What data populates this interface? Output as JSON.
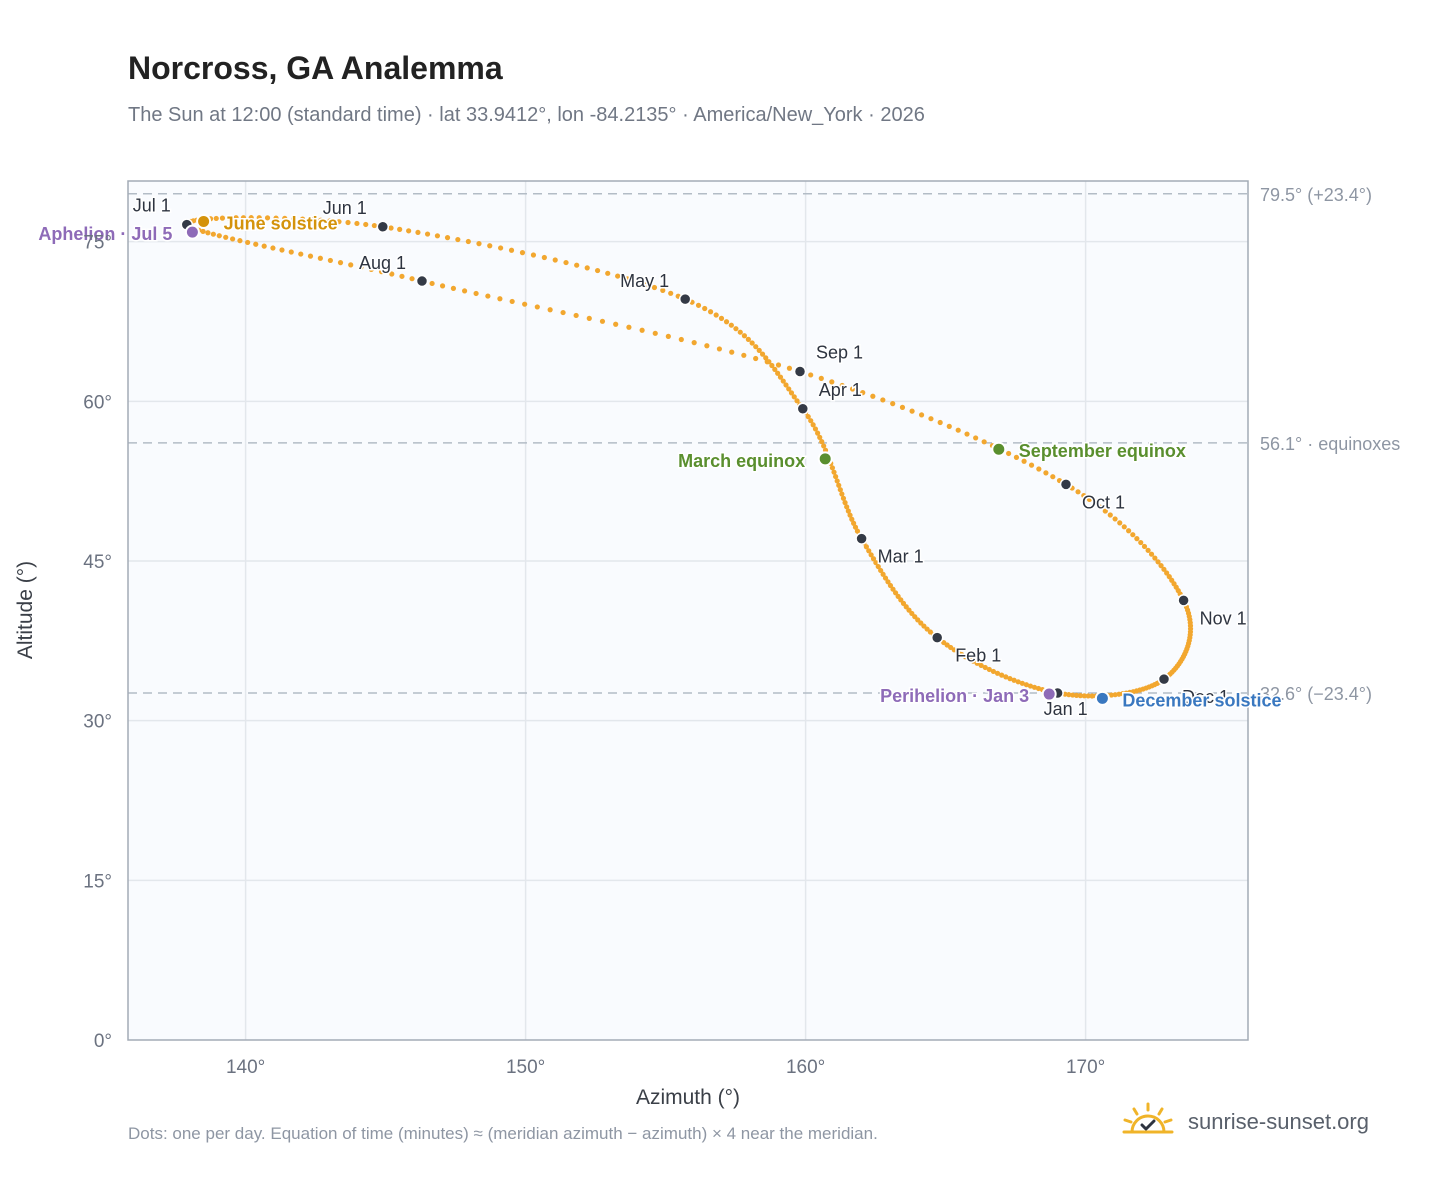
{
  "header": {
    "title": "Norcross, GA Analemma",
    "subtitle": "The Sun at 12:00 (standard time) · lat 33.9412°, lon -84.2135° · America/New_York · 2026"
  },
  "footer": {
    "note": "Dots: one per day. Equation of time (minutes) ≈ (meridian azimuth − azimuth) × 4 near the meridian.",
    "brand": "sunrise-sunset.org",
    "brand_icon": "sun-horizon-check-icon"
  },
  "colors": {
    "curve": "#f2a72f",
    "month_marker": "#343a46",
    "equinox": "#5a8f2e",
    "june_solstice": "#d4930b",
    "december_solstice": "#3a78c0",
    "apsis": "#8e6bb8",
    "plot_bg": "#f9fbfe",
    "grid": "#e3e7ec",
    "reference_line": "#b3bcc6"
  },
  "chart_data": {
    "type": "scatter",
    "title": "Norcross, GA Analemma",
    "xlabel": "Azimuth (°)",
    "ylabel": "Altitude (°)",
    "xlim": [
      135.8,
      175.8
    ],
    "ylim": [
      0,
      80.7
    ],
    "x_ticks": [
      140,
      150,
      160,
      170
    ],
    "x_tick_labels": [
      "140°",
      "150°",
      "160°",
      "170°"
    ],
    "y_ticks": [
      0,
      15,
      30,
      45,
      60,
      75
    ],
    "y_tick_labels": [
      "0°",
      "15°",
      "30°",
      "45°",
      "60°",
      "75°"
    ],
    "grid": true,
    "reference_lines": [
      {
        "y": 79.5,
        "label": "79.5° (+23.4°)"
      },
      {
        "y": 56.1,
        "label": "56.1° · equinoxes"
      },
      {
        "y": 32.6,
        "label": "32.6° (−23.4°)"
      }
    ],
    "month_markers": [
      {
        "label": "Jan 1",
        "x": 169.0,
        "y": 32.6
      },
      {
        "label": "Feb 1",
        "x": 164.7,
        "y": 37.8
      },
      {
        "label": "Mar 1",
        "x": 162.0,
        "y": 47.1
      },
      {
        "label": "Apr 1",
        "x": 159.9,
        "y": 59.3
      },
      {
        "label": "May 1",
        "x": 155.7,
        "y": 69.6
      },
      {
        "label": "Jun 1",
        "x": 144.9,
        "y": 76.4
      },
      {
        "label": "Jul 1",
        "x": 137.9,
        "y": 76.6
      },
      {
        "label": "Aug 1",
        "x": 146.3,
        "y": 71.3
      },
      {
        "label": "Sep 1",
        "x": 159.8,
        "y": 62.8
      },
      {
        "label": "Oct 1",
        "x": 169.3,
        "y": 52.2
      },
      {
        "label": "Nov 1",
        "x": 173.5,
        "y": 41.3
      },
      {
        "label": "Dec 1",
        "x": 172.8,
        "y": 33.9
      }
    ],
    "events": [
      {
        "label": "March equinox",
        "x": 160.7,
        "y": 54.6
      },
      {
        "label": "June solstice",
        "x": 138.5,
        "y": 76.9
      },
      {
        "label": "September equinox",
        "x": 166.9,
        "y": 55.5
      },
      {
        "label": "December solstice",
        "x": 170.6,
        "y": 32.1
      },
      {
        "label": "Perihelion · Jan 3",
        "x": 168.7,
        "y": 32.5
      },
      {
        "label": "Aphelion · Jul 5",
        "x": 138.1,
        "y": 75.9
      }
    ]
  }
}
